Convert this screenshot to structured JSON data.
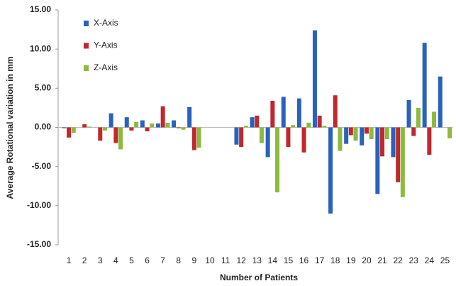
{
  "chart_data": {
    "type": "bar",
    "x_label": "Number of Patients",
    "y_label": "Average Rotational  variation in mm",
    "categories": [
      "1",
      "2",
      "3",
      "4",
      "5",
      "6",
      "7",
      "8",
      "9",
      "10",
      "11",
      "12",
      "13",
      "14",
      "15",
      "16",
      "17",
      "18",
      "19",
      "20",
      "21",
      "22",
      "23",
      "24",
      "25"
    ],
    "series": [
      {
        "name": "X-Axis",
        "color": "#2a62bb",
        "values": [
          -0.1,
          0,
          0,
          1.8,
          1.3,
          0.9,
          0.5,
          0.9,
          2.6,
          0,
          0,
          -2.2,
          1.3,
          -3.8,
          3.9,
          3.7,
          12.4,
          -11.0,
          -2.1,
          -2.3,
          -8.5,
          -3.8,
          3.5,
          10.8,
          6.5
        ]
      },
      {
        "name": "Y-Axis",
        "color": "#c0282e",
        "values": [
          -1.3,
          0.4,
          -1.7,
          -2.0,
          -0.4,
          -0.5,
          2.7,
          -0.1,
          -2.9,
          0,
          0,
          -2.5,
          1.5,
          3.4,
          -2.5,
          -3.2,
          1.5,
          4.1,
          -1.0,
          -0.8,
          -3.7,
          -7.0,
          -1.1,
          -3.5,
          0
        ]
      },
      {
        "name": "Z-Axis",
        "color": "#8cba3c",
        "values": [
          -0.7,
          0.1,
          -0.4,
          -2.8,
          0.7,
          0.5,
          0.6,
          -0.3,
          -2.6,
          0,
          0,
          0.2,
          -2.0,
          -8.3,
          0.3,
          0.6,
          0.2,
          -3.0,
          -1.7,
          -1.5,
          -1.5,
          -8.9,
          2.5,
          2.0,
          -1.4
        ]
      }
    ],
    "ylim": [
      -15,
      15
    ],
    "yticks": [
      {
        "value": -15,
        "label": "-15.00"
      },
      {
        "value": -10,
        "label": "-10.00"
      },
      {
        "value": -5,
        "label": "-5.00"
      },
      {
        "value": 0,
        "label": "0.00"
      },
      {
        "value": 5,
        "label": "5.00"
      },
      {
        "value": 10,
        "label": "10.00"
      },
      {
        "value": 15,
        "label": "15.00"
      }
    ],
    "grid": false,
    "legend": "upper-left"
  }
}
